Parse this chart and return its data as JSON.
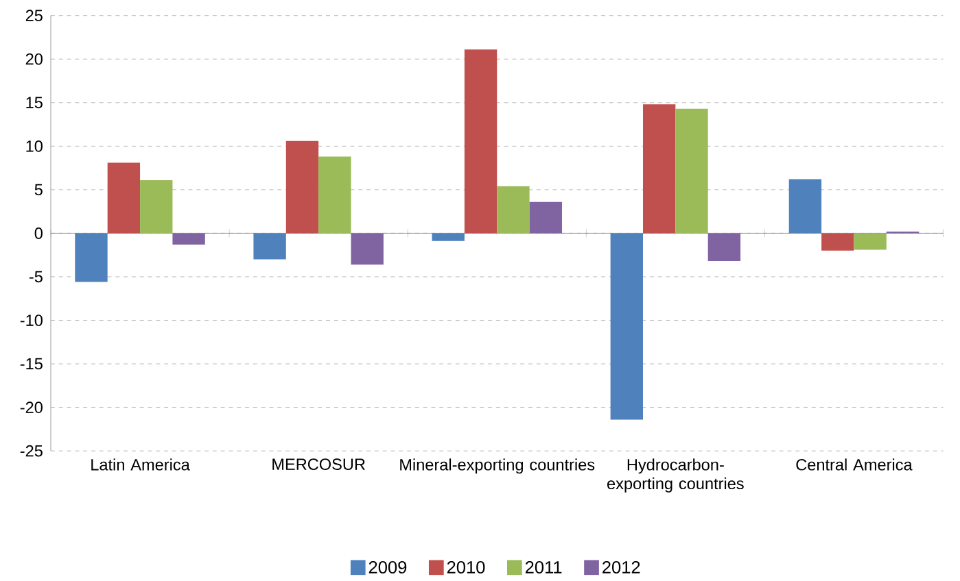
{
  "chart_data": {
    "type": "bar",
    "categories": [
      "Latin America",
      "MERCOSUR",
      "Mineral-exporting countries",
      "Hydrocarbon-exporting countries",
      "Central America"
    ],
    "series": [
      {
        "name": "2009",
        "color": "#4f81bd",
        "values": [
          -5.6,
          -3.0,
          -0.9,
          -21.4,
          6.2
        ]
      },
      {
        "name": "2010",
        "color": "#c0504d",
        "values": [
          8.1,
          10.6,
          21.1,
          14.8,
          -2.0
        ]
      },
      {
        "name": "2011",
        "color": "#9bbb59",
        "values": [
          6.1,
          8.8,
          5.4,
          14.3,
          -1.9
        ]
      },
      {
        "name": "2012",
        "color": "#8064a2",
        "values": [
          -1.3,
          -3.6,
          3.6,
          -3.2,
          0.2
        ]
      }
    ],
    "ylim": [
      -25,
      25
    ],
    "yticks": [
      -25,
      -20,
      -15,
      -10,
      -5,
      0,
      5,
      10,
      15,
      20,
      25
    ],
    "grid": "y",
    "legend": "bottom"
  }
}
